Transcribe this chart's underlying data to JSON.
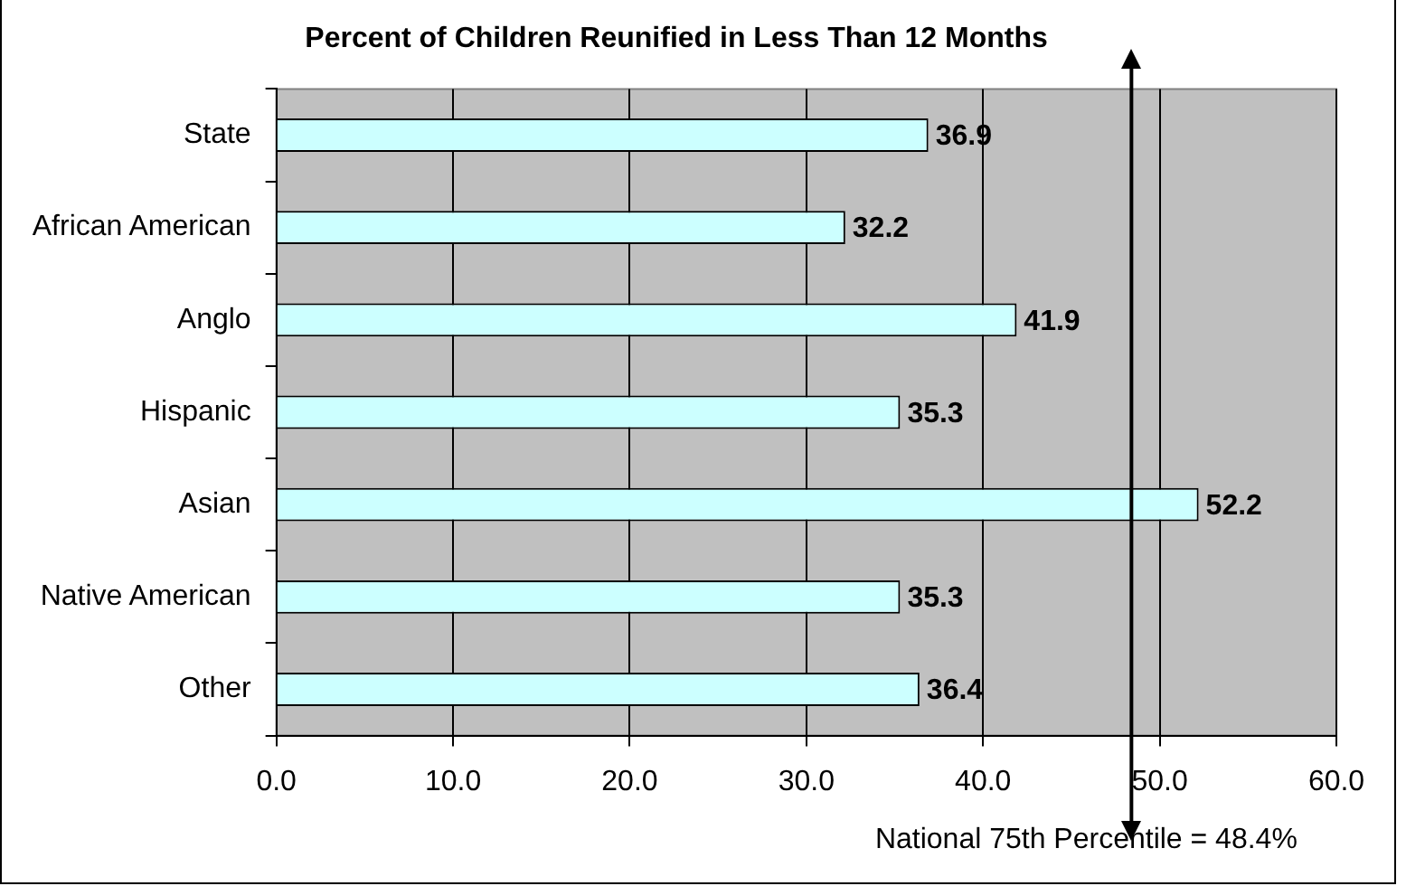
{
  "chart_data": {
    "type": "bar",
    "orientation": "horizontal",
    "title": "Percent of Children Reunified in Less Than 12 Months",
    "categories": [
      "State",
      "African American",
      "Anglo",
      "Hispanic",
      "Asian",
      "Native American",
      "Other"
    ],
    "values": [
      36.9,
      32.2,
      41.9,
      35.3,
      52.2,
      35.3,
      36.4
    ],
    "color": "#ccffff",
    "xlim": [
      0,
      60
    ],
    "xticks": [
      {
        "value": 0,
        "label": "0.0"
      },
      {
        "value": 10,
        "label": "10.0"
      },
      {
        "value": 20,
        "label": "20.0"
      },
      {
        "value": 30,
        "label": "30.0"
      },
      {
        "value": 40,
        "label": "40.0"
      },
      {
        "value": 50,
        "label": "50.0"
      },
      {
        "value": 60,
        "label": "60.0"
      }
    ],
    "grid": "x",
    "data_labels": true,
    "legend": false,
    "ref_lines": [
      {
        "axis": "x",
        "value": 48.4,
        "label": "National 75th Percentile = 48.4%",
        "color": "#000000"
      }
    ]
  }
}
